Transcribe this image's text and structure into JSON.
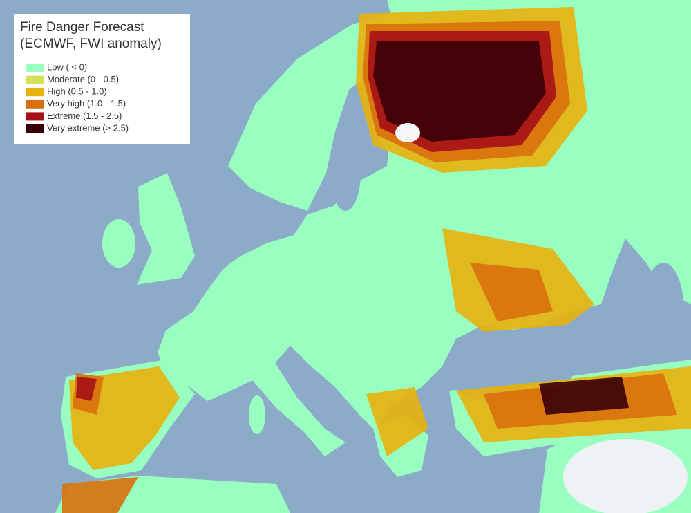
{
  "legend": {
    "title": "Fire Danger Forecast",
    "subtitle": "(ECMWF, FWI anomaly)",
    "items": [
      {
        "label": "Low ( < 0)",
        "color": "#99ffc0"
      },
      {
        "label": "Moderate (0 - 0.5)",
        "color": "#d4e157"
      },
      {
        "label": "High (0.5 - 1.0)",
        "color": "#e8b10c"
      },
      {
        "label": "Very high (1.0 - 1.5)",
        "color": "#d9700c"
      },
      {
        "label": "Extreme (1.5 - 2.5)",
        "color": "#a50f15"
      },
      {
        "label": "Very extreme (> 2.5)",
        "color": "#3a0008"
      }
    ]
  }
}
